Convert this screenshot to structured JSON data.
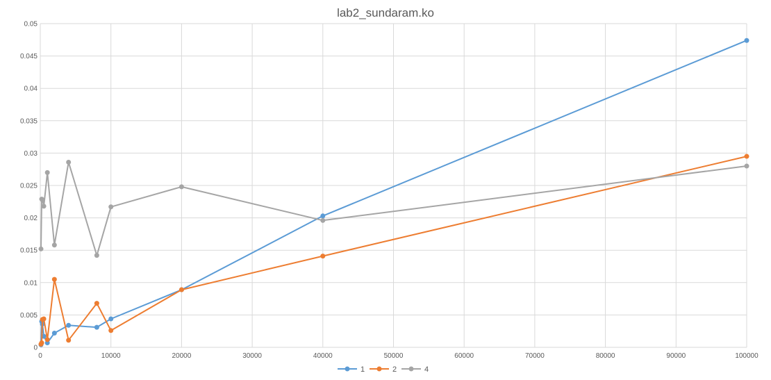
{
  "chart_data": {
    "type": "line",
    "title": "lab2_sundaram.ko",
    "xlabel": "",
    "ylabel": "",
    "xlim": [
      0,
      100000
    ],
    "ylim": [
      0,
      0.05
    ],
    "x_ticks": [
      0,
      10000,
      20000,
      30000,
      40000,
      50000,
      60000,
      70000,
      80000,
      90000,
      100000
    ],
    "y_ticks": [
      0,
      0.005,
      0.01,
      0.015,
      0.02,
      0.025,
      0.03,
      0.035,
      0.04,
      0.045,
      0.05
    ],
    "x_tick_labels": [
      "0",
      "10000",
      "20000",
      "30000",
      "40000",
      "50000",
      "60000",
      "70000",
      "80000",
      "90000",
      "100000"
    ],
    "y_tick_labels": [
      "0",
      "0.005",
      "0.01",
      "0.015",
      "0.02",
      "0.025",
      "0.03",
      "0.035",
      "0.04",
      "0.045",
      "0.05"
    ],
    "grid": true,
    "legend_position": "bottom",
    "series": [
      {
        "name": "1",
        "color": "#5b9bd5",
        "x": [
          100,
          200,
          300,
          500,
          1000,
          2000,
          4000,
          8000,
          10000,
          20000,
          40000,
          100000
        ],
        "y": [
          0.0004,
          0.004,
          0.0036,
          0.0017,
          0.0007,
          0.0022,
          0.0034,
          0.0031,
          0.0044,
          0.0089,
          0.0203,
          0.0474
        ]
      },
      {
        "name": "2",
        "color": "#ed7d31",
        "x": [
          100,
          200,
          300,
          500,
          1000,
          2000,
          4000,
          8000,
          10000,
          20000,
          40000,
          100000
        ],
        "y": [
          0.0005,
          0.0007,
          0.0043,
          0.0044,
          0.0012,
          0.0105,
          0.0011,
          0.0068,
          0.0026,
          0.0089,
          0.0141,
          0.0295
        ]
      },
      {
        "name": "4",
        "color": "#a5a5a5",
        "x": [
          100,
          200,
          300,
          500,
          1000,
          2000,
          4000,
          8000,
          10000,
          20000,
          40000,
          100000
        ],
        "y": [
          0.0152,
          0.0229,
          0.0228,
          0.0218,
          0.027,
          0.0158,
          0.0286,
          0.0142,
          0.0217,
          0.0248,
          0.0196,
          0.028
        ]
      }
    ]
  }
}
